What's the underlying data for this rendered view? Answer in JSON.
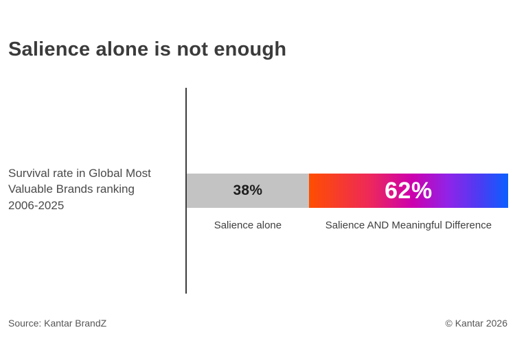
{
  "page": {
    "background": "#ffffff"
  },
  "header": {
    "title": "Salience alone is not enough",
    "title_color": "#3b3b3b"
  },
  "chart": {
    "left_label_lines": [
      "Survival rate in Global Most",
      "Valuable Brands ranking",
      "2006-2025"
    ],
    "axis_line_color": "#3c3c3c"
  },
  "chart_data": {
    "type": "bar",
    "orientation": "horizontal-stacked",
    "title": "Salience alone is not enough",
    "measure_label": "Survival rate in Global Most Valuable Brands ranking 2006-2025",
    "categories": [
      "Salience alone",
      "Salience AND Meaningful Difference"
    ],
    "values": [
      38,
      62
    ],
    "value_labels": [
      "38%",
      "62%"
    ],
    "xlim": [
      0,
      100
    ],
    "grid": false,
    "legend": "none",
    "colors": {
      "salience_alone_fill": "#c3c3c3",
      "gradient_stops": [
        "#ff4e00",
        "#ef2a55",
        "#cf00ab",
        "#9б1fe6",
        "#5b34f2",
        "#0b5fff"
      ]
    }
  },
  "colors": {
    "gray_segment": "#c3c3c3",
    "gradient": [
      "#ff4e00",
      "#ee2958",
      "#cc00ae",
      "#8f24e8",
      "#4a3cf3",
      "#0b5fff"
    ],
    "value_text_dark": "#1d1d1d",
    "value_text_light": "#ffffff"
  },
  "footer": {
    "source": "Source: Kantar BrandZ",
    "copyright": "© Kantar 2026"
  }
}
